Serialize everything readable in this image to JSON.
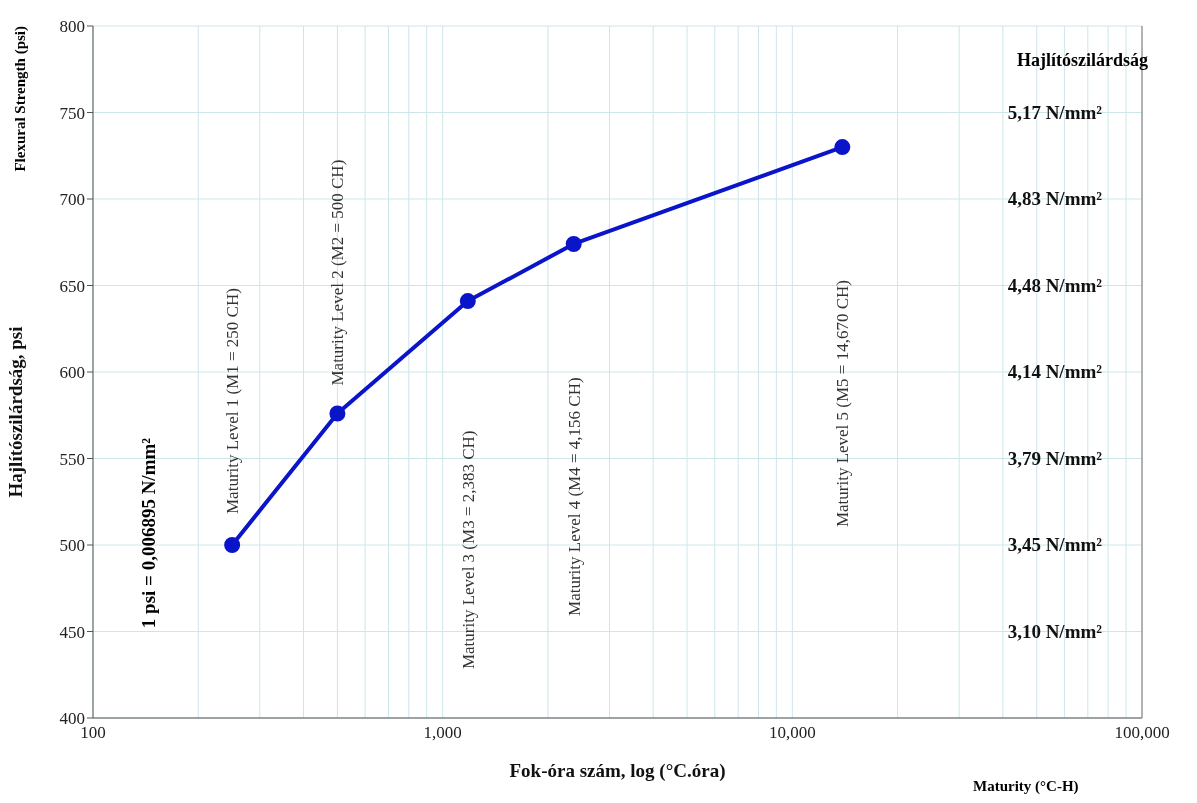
{
  "chart_data": {
    "type": "line",
    "xlabel": "Fok-óra szám, log (°C.óra)",
    "ylabel": "Hajlítószilárdság, psi",
    "x": [
      250,
      500,
      1180,
      2370,
      13900
    ],
    "series": [
      {
        "color": "#0a14c8",
        "values": [
          500,
          576,
          641,
          674,
          730
        ]
      }
    ],
    "log": "x",
    "grid": true,
    "marker": "circle",
    "line_style": "solid",
    "xlim": [
      100,
      100000
    ],
    "xticks": [
      {
        "value": 100,
        "label": "100"
      },
      {
        "value": 200,
        "label": null
      },
      {
        "value": 300,
        "label": null
      },
      {
        "value": 400,
        "label": null
      },
      {
        "value": 500,
        "label": null
      },
      {
        "value": 600,
        "label": null
      },
      {
        "value": 700,
        "label": null
      },
      {
        "value": 800,
        "label": null
      },
      {
        "value": 900,
        "label": null
      },
      {
        "value": 1000,
        "label": "1,000"
      },
      {
        "value": 2000,
        "label": null
      },
      {
        "value": 3000,
        "label": null
      },
      {
        "value": 4000,
        "label": null
      },
      {
        "value": 5000,
        "label": null
      },
      {
        "value": 6000,
        "label": null
      },
      {
        "value": 7000,
        "label": null
      },
      {
        "value": 8000,
        "label": null
      },
      {
        "value": 9000,
        "label": null
      },
      {
        "value": 10000,
        "label": "10,000"
      },
      {
        "value": 20000,
        "label": null
      },
      {
        "value": 30000,
        "label": null
      },
      {
        "value": 40000,
        "label": null
      },
      {
        "value": 50000,
        "label": null
      },
      {
        "value": 60000,
        "label": null
      },
      {
        "value": 70000,
        "label": null
      },
      {
        "value": 80000,
        "label": null
      },
      {
        "value": 90000,
        "label": null
      },
      {
        "value": 100000,
        "label": "100,000"
      }
    ],
    "ylim": [
      400,
      800
    ],
    "yticks": [
      400,
      450,
      500,
      550,
      600,
      650,
      700,
      750,
      800
    ],
    "annotations": [
      "Maturity Level 1 (M1 = 250 CH)",
      "Maturity Level 2 (M2 = 500 CH)",
      "Maturity Level 3 (M3 = 2,383 CH)",
      "Maturity Level 4 (M4 = 4,156 CH)",
      "Maturity Level 5 (M5 = 14,670 CH)",
      "1 psi = 0,006895 N/mm²",
      "Flexural Strength (psi)",
      "Maturity (°C-H)",
      "Hajlítószilárdság",
      "5,17 N/mm²",
      "4,83 N/mm²",
      "4,48 N/mm²",
      "4,14 N/mm²",
      "3,79 N/mm²",
      "3,45 N/mm²",
      "3,10 N/mm²"
    ]
  }
}
